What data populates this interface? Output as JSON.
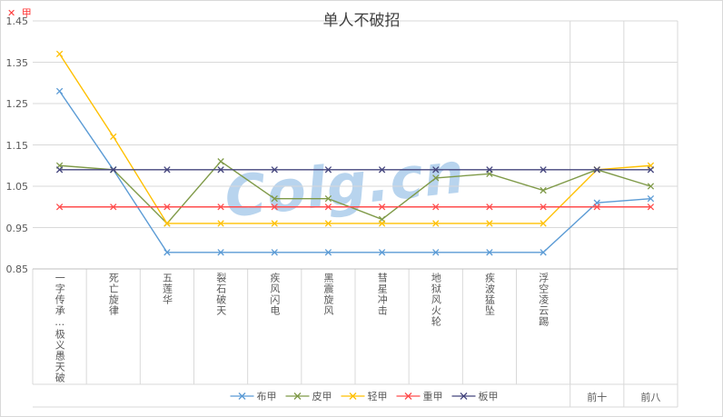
{
  "corner": {
    "marker": "✕",
    "label": "甲"
  },
  "watermark": "Colg.cn",
  "chart_data": {
    "type": "line",
    "title": "单人不破招",
    "xlabel": "",
    "ylabel": "",
    "grid": "horizontal",
    "marker": "x",
    "legend_position": "bottom",
    "ylim": [
      0.85,
      1.45
    ],
    "yticks": [
      "1.45",
      "1.35",
      "1.25",
      "1.15",
      "1.05",
      "0.95",
      "0.85"
    ],
    "rotated_labels_count": 10,
    "categories": [
      "一字传承…极义愚天破",
      "死亡旋律",
      "五莲华",
      "裂石破天",
      "疾风闪电",
      "黑震旋风",
      "彗星冲击",
      "地狱风火轮",
      "疾波猛坠",
      "浮空凌云踢",
      "前十",
      "前八"
    ],
    "series": [
      {
        "name": "布甲",
        "color": "#5b9bd5",
        "values": [
          1.28,
          1.09,
          0.89,
          0.89,
          0.89,
          0.89,
          0.89,
          0.89,
          0.89,
          0.89,
          1.01,
          1.02
        ]
      },
      {
        "name": "皮甲",
        "color": "#7f9a48",
        "values": [
          1.1,
          1.09,
          0.96,
          1.11,
          1.02,
          1.02,
          0.97,
          1.07,
          1.08,
          1.04,
          1.09,
          1.05
        ]
      },
      {
        "name": "轻甲",
        "color": "#ffc000",
        "values": [
          1.37,
          1.17,
          0.96,
          0.96,
          0.96,
          0.96,
          0.96,
          0.96,
          0.96,
          0.96,
          1.09,
          1.1
        ]
      },
      {
        "name": "重甲",
        "color": "#ff4d4d",
        "values": [
          1.0,
          1.0,
          1.0,
          1.0,
          1.0,
          1.0,
          1.0,
          1.0,
          1.0,
          1.0,
          1.0,
          1.0
        ]
      },
      {
        "name": "板甲",
        "color": "#45467e",
        "values": [
          1.09,
          1.09,
          1.09,
          1.09,
          1.09,
          1.09,
          1.09,
          1.09,
          1.09,
          1.09,
          1.09,
          1.09
        ]
      }
    ]
  }
}
